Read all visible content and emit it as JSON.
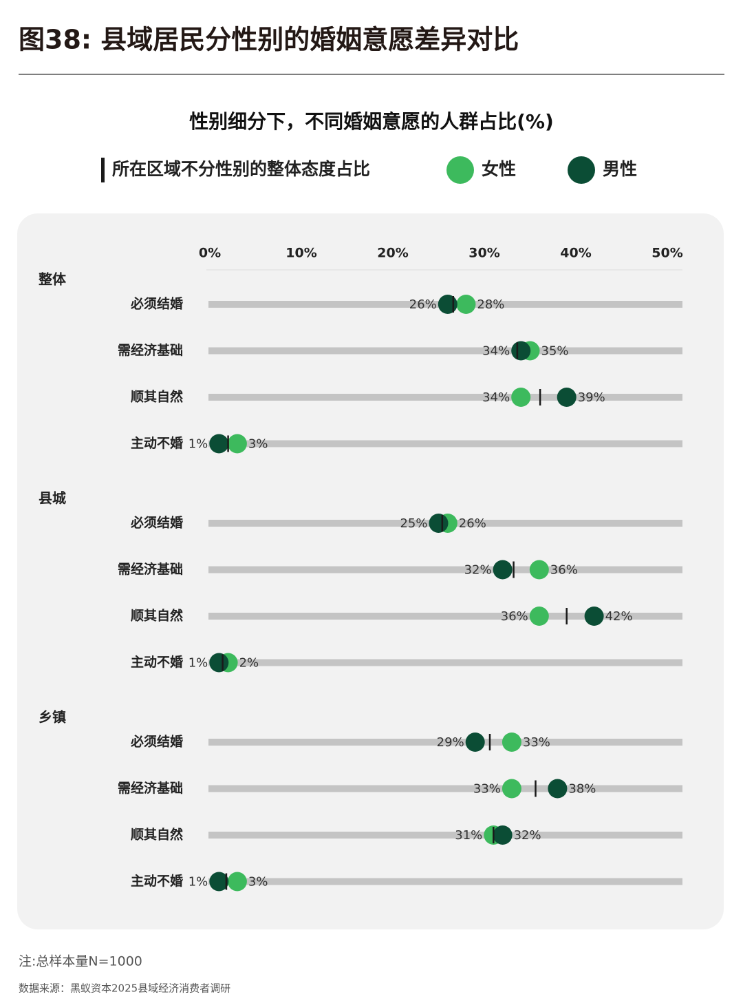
{
  "header": {
    "title": "图38: 县域居民分性别的婚姻意愿差异对比"
  },
  "chart_data": {
    "type": "dot",
    "title": "性别细分下，不同婚姻意愿的人群占比(%)",
    "xlim": [
      0,
      50
    ],
    "xticks": [
      {
        "value": 0,
        "label": "0%"
      },
      {
        "value": 10,
        "label": "10%"
      },
      {
        "value": 20,
        "label": "20%"
      },
      {
        "value": 30,
        "label": "30%"
      },
      {
        "value": 40,
        "label": "40%"
      },
      {
        "value": 50,
        "label": "50%"
      }
    ],
    "series": [
      {
        "name": "所在区域不分性别的整体态度占比",
        "color": "#1a1a1a",
        "marker": "line"
      },
      {
        "name": "女性",
        "color": "#3dba5d",
        "marker": "dot"
      },
      {
        "name": "男性",
        "color": "#0b4d35",
        "marker": "dot"
      }
    ],
    "groups": [
      {
        "name": "整体",
        "categories": [
          "必须结婚",
          "需经济基础",
          "顺其自然",
          "主动不婚"
        ],
        "series": [
          {
            "values": [
              26.6,
              33.6,
              36.1,
              2.0
            ]
          },
          {
            "values": [
              28,
              35,
              34,
              3
            ],
            "value_labels": [
              "28%",
              "35%",
              "34%",
              "3%"
            ]
          },
          {
            "values": [
              26,
              34,
              39,
              1
            ],
            "value_labels": [
              "26%",
              "34%",
              "39%",
              "1%"
            ]
          }
        ]
      },
      {
        "name": "县城",
        "categories": [
          "必须结婚",
          "需经济基础",
          "顺其自然",
          "主动不婚"
        ],
        "series": [
          {
            "values": [
              25.4,
              33.2,
              39.0,
              1.4
            ]
          },
          {
            "values": [
              26,
              36,
              36,
              2
            ],
            "value_labels": [
              "26%",
              "36%",
              "36%",
              "2%"
            ]
          },
          {
            "values": [
              25,
              32,
              42,
              1
            ],
            "value_labels": [
              "25%",
              "32%",
              "42%",
              "1%"
            ]
          }
        ]
      },
      {
        "name": "乡镇",
        "categories": [
          "必须结婚",
          "需经济基础",
          "顺其自然",
          "主动不婚"
        ],
        "series": [
          {
            "values": [
              30.6,
              35.6,
              31.0,
              1.8
            ]
          },
          {
            "values": [
              33,
              33,
              31,
              3
            ],
            "value_labels": [
              "33%",
              "33%",
              "31%",
              "3%"
            ]
          },
          {
            "values": [
              29,
              38,
              32,
              1
            ],
            "value_labels": [
              "29%",
              "38%",
              "32%",
              "1%"
            ]
          }
        ]
      }
    ]
  },
  "footer": {
    "note": "注:总样本量N=1000",
    "source": "数据来源：黑蚁资本2025县域经济消费者调研"
  }
}
